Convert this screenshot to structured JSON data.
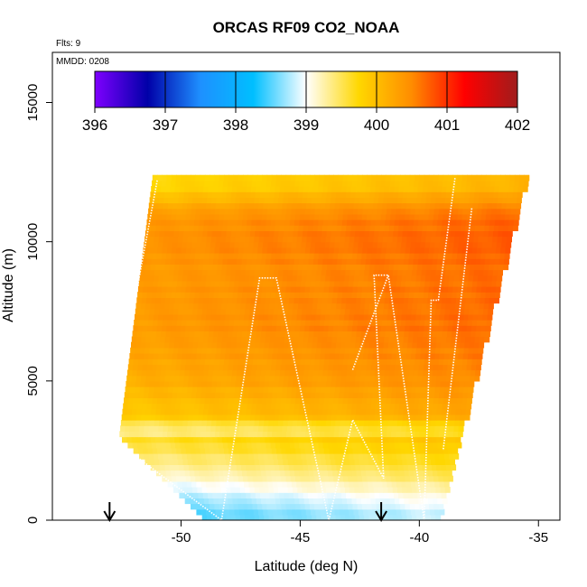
{
  "chart_data": {
    "type": "heatmap",
    "title": "ORCAS RF09 CO2_NOAA",
    "flights_label": "Flts: 9",
    "date_label": "MMDD: 0208",
    "xlabel": "Latitude (deg N)",
    "ylabel": "Altitude (m)",
    "xlim": [
      -55.4,
      -34.1
    ],
    "ylim": [
      0,
      16800
    ],
    "x_ticks": [
      "-50",
      "-45",
      "-40",
      "-35"
    ],
    "x_tick_values": [
      -50,
      -45,
      -40,
      -35
    ],
    "y_ticks": [
      "0",
      "5000",
      "10000",
      "15000"
    ],
    "y_tick_values": [
      0,
      5000,
      10000,
      15000
    ],
    "colorbar": {
      "min": 396,
      "max": 402,
      "ticks": [
        "396",
        "397",
        "398",
        "399",
        "400",
        "401",
        "402"
      ],
      "tick_values": [
        396,
        397,
        398,
        399,
        400,
        401,
        402
      ],
      "colors": [
        "#7f00ff",
        "#0000a8",
        "#1e90ff",
        "#00bfff",
        "#ffffff",
        "#ffd700",
        "#ff8c00",
        "#ff0000",
        "#a01c1c"
      ]
    },
    "colors": {
      "background": "#ffffff",
      "flight_track": "#ffffff",
      "arrow": "#000000"
    },
    "curtain": {
      "west_edge": [
        [
          -52.6,
          3000
        ],
        [
          -51.2,
          12300
        ]
      ],
      "east_edge": [
        [
          -39.2,
          0
        ],
        [
          -35.4,
          12700
        ]
      ],
      "top": 12300,
      "bottom_lat_range": [
        -49,
        -39.2
      ],
      "profile": [
        [
          0,
          398.6
        ],
        [
          600,
          398.8
        ],
        [
          1200,
          399.1
        ],
        [
          1800,
          399.4
        ],
        [
          2400,
          399.6
        ],
        [
          3000,
          399.8
        ],
        [
          3600,
          400.0
        ],
        [
          4200,
          400.1
        ],
        [
          5000,
          400.3
        ],
        [
          6000,
          400.4
        ],
        [
          7000,
          400.5
        ],
        [
          8000,
          400.5
        ],
        [
          9000,
          400.5
        ],
        [
          10000,
          400.6
        ],
        [
          11000,
          400.5
        ],
        [
          12000,
          399.9
        ]
      ]
    },
    "flight_track": [
      [
        -51,
        12200
      ],
      [
        -53,
        3000
      ],
      [
        -48.3,
        0
      ],
      [
        -46.7,
        8700
      ],
      [
        -46,
        8700
      ],
      [
        -43.8,
        0
      ],
      [
        -42.8,
        3600
      ],
      [
        -41.5,
        1500
      ],
      [
        -41.9,
        8800
      ],
      [
        -41.3,
        8800
      ],
      [
        -39.8,
        0
      ],
      [
        -39.5,
        7900
      ],
      [
        -39.2,
        7900
      ],
      [
        -38.5,
        12300
      ]
    ],
    "flight_track_2": [
      [
        -42.8,
        5400
      ],
      [
        -41.3,
        8800
      ]
    ],
    "flight_track_3": [
      [
        -37.8,
        11200
      ],
      [
        -39.0,
        2500
      ]
    ],
    "arrows": [
      -53,
      -41.6
    ]
  }
}
